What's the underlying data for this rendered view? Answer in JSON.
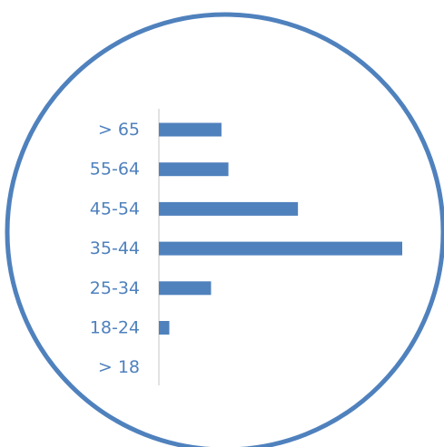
{
  "chart_data": {
    "type": "bar",
    "orientation": "horizontal",
    "categories": [
      "> 65",
      "55-64",
      "45-54",
      "35-44",
      "25-34",
      "18-24",
      "> 18"
    ],
    "values": [
      9,
      10,
      20,
      35,
      7.5,
      1.5,
      0
    ],
    "xlim": [
      0,
      35
    ],
    "title": "",
    "xlabel": "",
    "ylabel": "",
    "grid": false,
    "legend": "none"
  },
  "colors": {
    "bar": "#4f81bd",
    "label": "#4f81bd",
    "circle": "#4f81bd",
    "axis": "#d9d9d9"
  }
}
